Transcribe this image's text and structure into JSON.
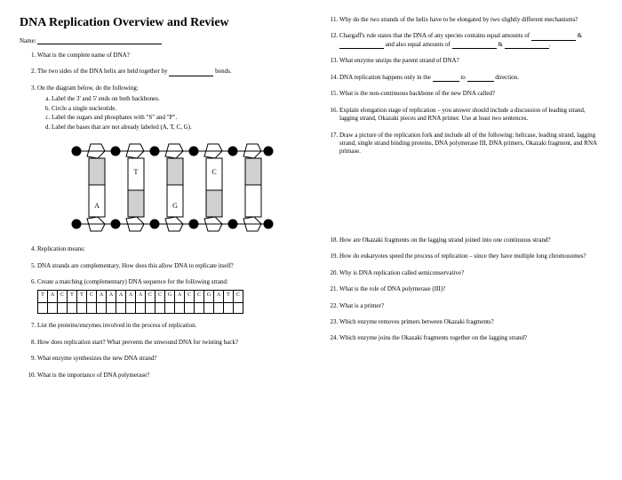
{
  "title": "DNA Replication Overview and Review",
  "name_label": "Name:",
  "left": {
    "q1": "What is the complete name of DNA?",
    "q2a": "The two sides of the DNA helix are held together by ",
    "q2b": " bonds.",
    "q3": "On the diagram below, do the following:",
    "q3a": "Label the 3' and 5' ends on both backbones.",
    "q3b": "Circle a single nucleotide.",
    "q3c": "Label the sugars and phosphates with \"S\" and \"P\".",
    "q3d": "Label the bases that are not already labeled (A, T, C, G).",
    "q4": "Replication means:",
    "q5": "DNA strands are complementary. How does this allow DNA to replicate itself?",
    "q6": "Create a matching (complementary) DNA sequence for the following strand:",
    "q7": "List the proteins/enzymes involved in the process of replication.",
    "q8": "How does replication start? What prevents the unwound DNA for twisting back?",
    "q9": "What enzyme synthesizes the new DNA strand?",
    "q10": "What is the importance of DNA polymerase?"
  },
  "sequence": [
    "T",
    "A",
    "C",
    "T",
    "T",
    "C",
    "A",
    "A",
    "A",
    "A",
    "A",
    "C",
    "C",
    "G",
    "A",
    "C",
    "C",
    "G",
    "A",
    "T",
    "C"
  ],
  "right": {
    "q11": "Why do the two strands of the helix have to be elongated by two slightly different mechanisms?",
    "q12a": "Chargaff's rule states that the DNA of any species contains equal amounts of ",
    "q12b": " & ",
    "q12c": " and also equal amounts of ",
    "q12d": " & ",
    "q12e": ".",
    "q13": "What enzyme unzips the parent strand of DNA?",
    "q14a": "DNA replication happens only in the ",
    "q14b": " to ",
    "q14c": " direction.",
    "q15": "What is the non-continuous backbone of the new DNA called?",
    "q16": "Explain elongation stage of replication – you answer should include a discussion of leading strand, lagging strand, Okazaki pieces and RNA primer.  Use at least two sentences.",
    "q17": "Draw a picture of the replication fork and include all of the following: helicase, leading strand, lagging strand, single strand binding proteins, DNA polymerase III, DNA primers, Okazaki fragment, and RNA primase.",
    "q18": "How are Okazaki fragments on the lagging strand joined into one continuous strand?",
    "q19": "How do eukaryotes speed the process of replication – since they have multiple long chromosomes?",
    "q20": "Why is DNA replication called semiconservative?",
    "q21": "What is the role of DNA polymerase (III)?",
    "q22": "What is a primer?",
    "q23": "Which enzyme removes primers between Okazaki fragments?",
    "q24": "Which enzyme joins the Okazaki fragments together on the lagging strand?"
  },
  "diagram": {
    "labels": [
      "A",
      "T",
      "G",
      "C"
    ]
  }
}
